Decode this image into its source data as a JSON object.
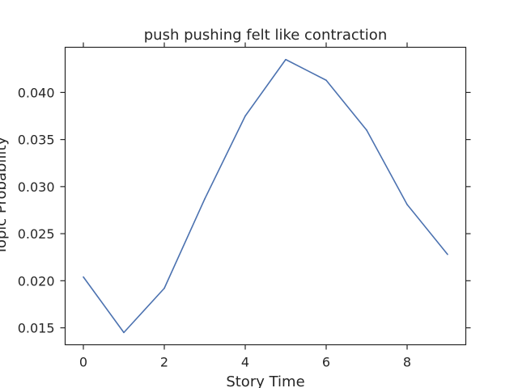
{
  "chart_data": {
    "type": "line",
    "title": "push pushing felt like contraction",
    "xlabel": "Story Time",
    "ylabel": "Topic Probability",
    "xlim": [
      -0.45,
      9.45
    ],
    "ylim": [
      0.0132,
      0.0448
    ],
    "x_ticks": [
      0,
      2,
      4,
      6,
      8
    ],
    "x_tick_labels": [
      "0",
      "2",
      "4",
      "6",
      "8"
    ],
    "y_ticks": [
      0.015,
      0.02,
      0.025,
      0.03,
      0.035,
      0.04
    ],
    "y_tick_labels": [
      "0.015",
      "0.020",
      "0.025",
      "0.030",
      "0.035",
      "0.040"
    ],
    "grid": false,
    "legend": "none",
    "series": [
      {
        "color": "#4c72b0",
        "x": [
          0,
          1,
          2,
          3,
          4,
          5,
          6,
          7,
          8,
          9
        ],
        "y": [
          0.0204,
          0.0145,
          0.0192,
          0.0287,
          0.0375,
          0.0435,
          0.0413,
          0.036,
          0.0281,
          0.0228
        ]
      }
    ]
  }
}
